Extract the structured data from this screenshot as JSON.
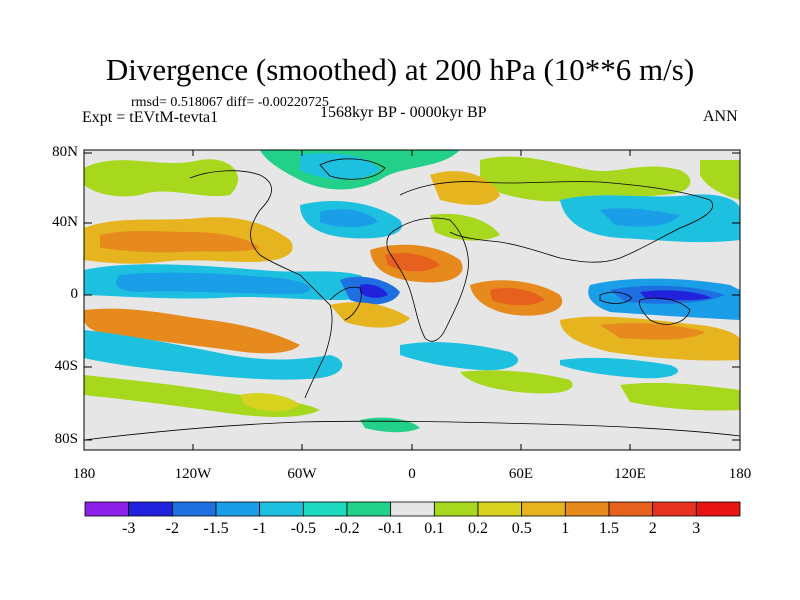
{
  "header": {
    "title": "Divergence (smoothed) at 200 hPa (10**6 m/s)",
    "stats": "rmsd= 0.518067 diff= -0.00220725",
    "experiment": "Expt = tEVtM-tevta1",
    "period": "1568kyr BP - 0000kyr BP",
    "season": "ANN"
  },
  "map": {
    "y_ticks": [
      "80N",
      "40N",
      "0",
      "40S",
      "80S"
    ],
    "x_ticks": [
      "180",
      "120W",
      "60W",
      "0",
      "60E",
      "120E",
      "180"
    ],
    "background_color": "#e6e6e6"
  },
  "colorbar": {
    "labels": [
      "-3",
      "-2",
      "-1.5",
      "-1",
      "-0.5",
      "-0.2",
      "-0.1",
      "0.1",
      "0.2",
      "0.5",
      "1",
      "1.5",
      "2",
      "3"
    ],
    "colors": [
      "#8a1fe8",
      "#2222dd",
      "#1e6fe0",
      "#1a9ee8",
      "#1ec0e0",
      "#1ed8c0",
      "#22d08a",
      "#e6e6e6",
      "#a8d81e",
      "#d6d21e",
      "#e6b41e",
      "#e68a1e",
      "#e6601e",
      "#e6321e",
      "#e61414"
    ]
  }
}
